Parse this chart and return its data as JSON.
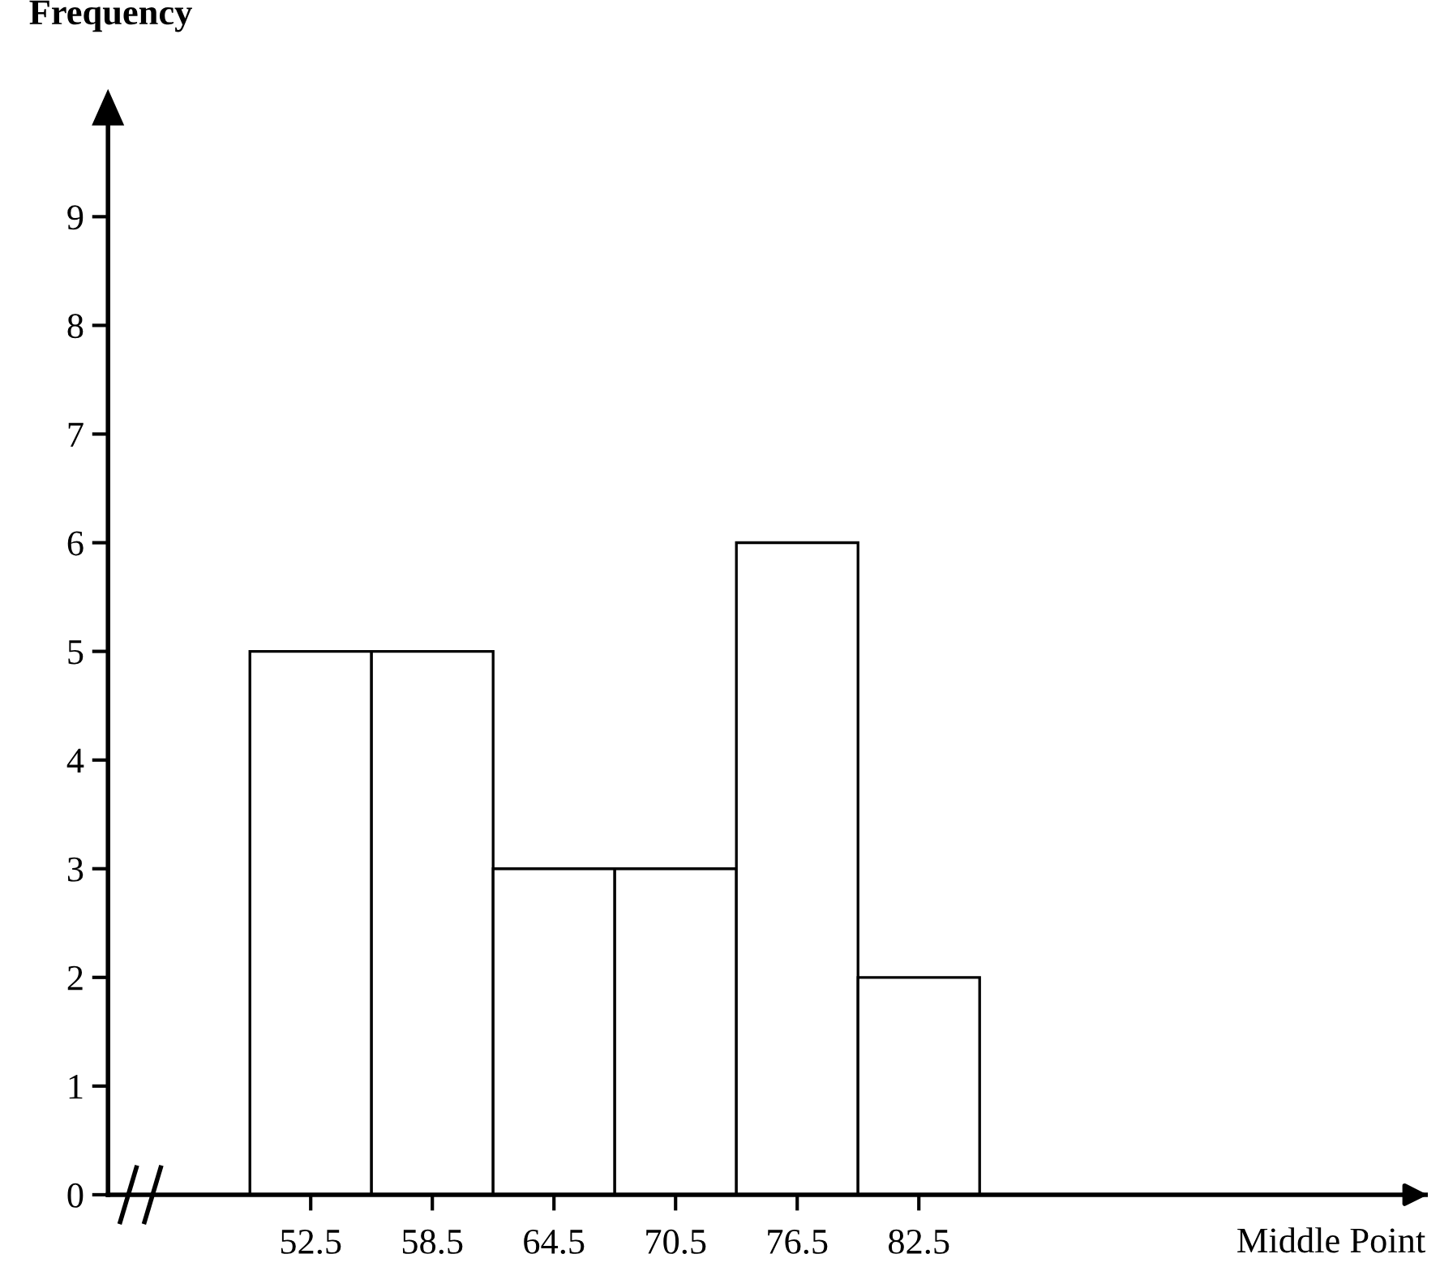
{
  "chart_data": {
    "type": "histogram",
    "xlabel": "Middle Point",
    "ylabel": "Frequency",
    "bins": [
      49.5,
      55.5,
      61.5,
      67.5,
      73.5,
      79.5,
      85.5
    ],
    "values": [
      5,
      5,
      3,
      3,
      6,
      2
    ],
    "color": "#ffffff",
    "xlim": [
      42.5,
      107.5
    ],
    "ylim": [
      0,
      10
    ],
    "xticks": [
      52.5,
      58.5,
      64.5,
      70.5,
      76.5,
      82.5
    ],
    "yticks": [
      0,
      1,
      2,
      3,
      4,
      5,
      6,
      7,
      8,
      9
    ],
    "grid": false
  }
}
